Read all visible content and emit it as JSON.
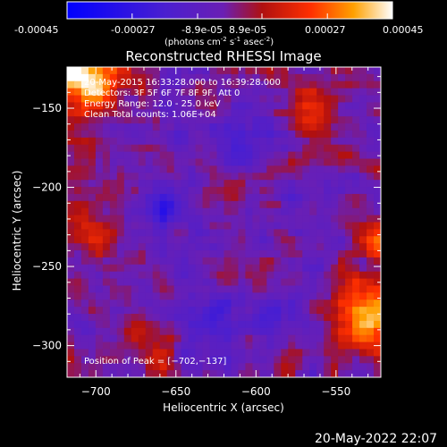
{
  "colorbar": {
    "ticks": [
      "-0.00045",
      "-0.00027",
      "-8.9e-05",
      "8.9e-05",
      "0.00027",
      "0.00045"
    ],
    "tick_values": [
      -0.00045,
      -0.00027,
      -8.9e-05,
      8.9e-05,
      0.00027,
      0.00045
    ],
    "unit_main": "(photons cm",
    "unit_exp1": "-2",
    "unit_mid1": " s",
    "unit_exp2": "-1",
    "unit_mid2": " asec",
    "unit_exp3": "-2",
    "unit_end": ")",
    "range": [
      -0.00045,
      0.00045
    ]
  },
  "plot": {
    "title": "Reconstructed RHESSI Image",
    "xlabel": "Heliocentric X (arcsec)",
    "ylabel": "Heliocentric Y (arcsec)",
    "x_range": [
      -718,
      -522
    ],
    "y_range": [
      -320,
      -124
    ],
    "x_ticks": [
      {
        "value": -700,
        "label": "−700"
      },
      {
        "value": -650,
        "label": "−650"
      },
      {
        "value": -600,
        "label": "−600"
      },
      {
        "value": -550,
        "label": "−550"
      }
    ],
    "y_ticks": [
      {
        "value": -150,
        "label": "−150"
      },
      {
        "value": -200,
        "label": "−200"
      },
      {
        "value": -250,
        "label": "−250"
      },
      {
        "value": -300,
        "label": "−300"
      }
    ]
  },
  "annotations": {
    "time": "20-May-2015 16:33:28.000 to 16:39:28.000",
    "detectors": "Detectors: 3F 5F 6F 7F 8F 9F, Att 0",
    "energy": "Energy Range: 12.0 - 25.0 keV",
    "clean": "Clean     Total counts: 1.06E+04",
    "peak": "Position of Peak = [−702,−137]"
  },
  "footer": {
    "timestamp": "20-May-2022 22:07"
  },
  "colors": {
    "background": "#000000",
    "foreground": "#ffffff",
    "low": "#0000ff",
    "zero": "#6a1fb4",
    "high": "#ffffff"
  }
}
